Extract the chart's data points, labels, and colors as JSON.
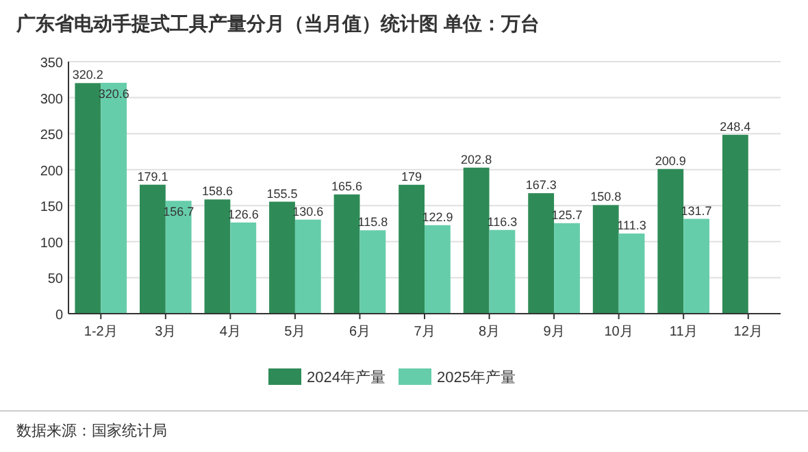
{
  "chart_data": {
    "type": "bar",
    "title": "广东省电动手提式工具产量分月（当月值）统计图 单位：万台",
    "categories": [
      "1-2月",
      "3月",
      "4月",
      "5月",
      "6月",
      "7月",
      "8月",
      "9月",
      "10月",
      "11月",
      "12月"
    ],
    "series": [
      {
        "name": "2024年产量",
        "color": "#2e8b57",
        "values": [
          320.2,
          179.1,
          158.6,
          155.5,
          165.6,
          179,
          202.8,
          167.3,
          150.8,
          200.9,
          248.4
        ]
      },
      {
        "name": "2025年产量",
        "color": "#66cdaa",
        "values": [
          320.6,
          156.7,
          126.6,
          130.6,
          115.8,
          122.9,
          116.3,
          125.7,
          111.3,
          131.7,
          null
        ]
      }
    ],
    "ylim": [
      0,
      350
    ],
    "yticks": [
      0,
      50,
      100,
      150,
      200,
      250,
      300,
      350
    ],
    "grid": "y",
    "legend": "bottom",
    "data_labels": true,
    "annotations": [
      "数据来源：国家统计局"
    ]
  }
}
